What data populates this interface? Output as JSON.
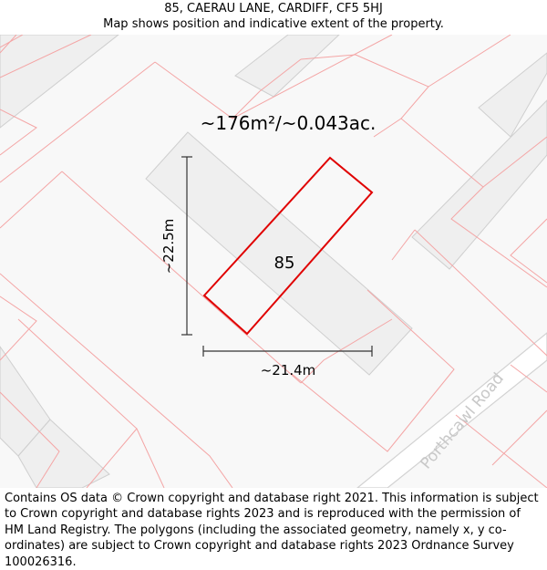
{
  "header": {
    "address": "85, CAERAU LANE, CARDIFF, CF5 5HJ",
    "subtitle": "Map shows position and indicative extent of the property."
  },
  "map": {
    "area_label": "~176m²/~0.043ac.",
    "plot_number": "85",
    "height_dimension": "~22.5m",
    "width_dimension": "~21.4m",
    "road_name": "Porthcawl Road",
    "colors": {
      "background": "#f8f8f8",
      "building": "#efefef",
      "building_stroke": "#cccccc",
      "parcel_line": "#f4a5a5",
      "property_outline": "#e00000",
      "road_casing": "#d0d0d0",
      "road_label": "#c8c8c8"
    }
  },
  "footer": {
    "copyright": "Contains OS data © Crown copyright and database right 2021. This information is subject to Crown copyright and database rights 2023 and is reproduced with the permission of HM Land Registry. The polygons (including the associated geometry, namely x, y co-ordinates) are subject to Crown copyright and database rights 2023 Ordnance Survey 100026316."
  }
}
